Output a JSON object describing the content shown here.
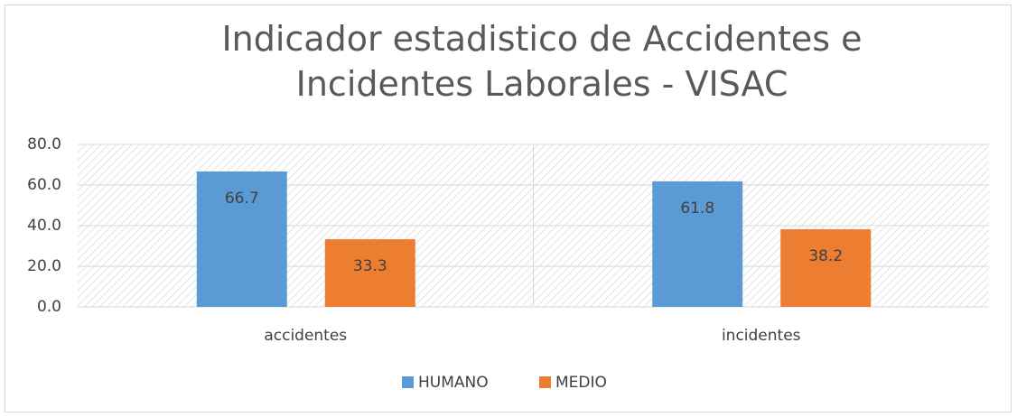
{
  "chart_data": {
    "type": "bar",
    "title": "Indicador estadistico de Accidentes e Incidentes Laborales - VISAC",
    "categories": [
      "accidentes",
      "incidentes"
    ],
    "series": [
      {
        "name": "HUMANO",
        "color": "#5b9bd5",
        "values": [
          66.7,
          61.8
        ]
      },
      {
        "name": "MEDIO",
        "color": "#ed7d31",
        "values": [
          33.3,
          38.2
        ]
      }
    ],
    "ylim": [
      0,
      80
    ],
    "yticks": [
      {
        "value": 0,
        "label": "0.0"
      },
      {
        "value": 20,
        "label": "20.0"
      },
      {
        "value": 40,
        "label": "40.0"
      },
      {
        "value": 60,
        "label": "60.0"
      },
      {
        "value": 80,
        "label": "80.0"
      }
    ],
    "grid": true,
    "legend": "bottom"
  }
}
